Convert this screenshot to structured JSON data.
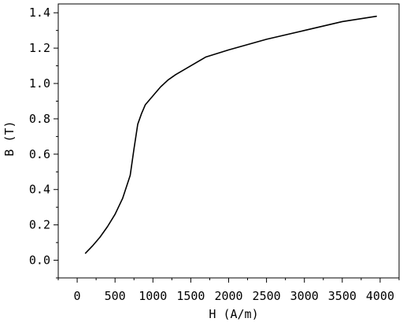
{
  "chart_data": {
    "type": "line",
    "title": "",
    "xlabel": "H (A/m)",
    "ylabel": "B (T)",
    "xlim": [
      -250,
      4250
    ],
    "ylim": [
      -0.1,
      1.45
    ],
    "xticks": [
      0,
      500,
      1000,
      1500,
      2000,
      2500,
      3000,
      3500,
      4000
    ],
    "yticks": [
      0.0,
      0.2,
      0.4,
      0.6,
      0.8,
      1.0,
      1.2,
      1.4
    ],
    "xtick_labels": [
      "0",
      "500",
      "1000",
      "1500",
      "2000",
      "2500",
      "3000",
      "3500",
      "4000"
    ],
    "ytick_labels": [
      "0.0",
      "0.2",
      "0.4",
      "0.6",
      "0.8",
      "1.0",
      "1.2",
      "1.4"
    ],
    "grid": false,
    "legend": "none",
    "line_color": "#000000",
    "series": [
      {
        "x": [
          110,
          200,
          300,
          400,
          500,
          600,
          700,
          750,
          800,
          850,
          900,
          1000,
          1100,
          1200,
          1300,
          1500,
          1700,
          2000,
          2500,
          3000,
          3500,
          3950
        ],
        "y": [
          0.04,
          0.08,
          0.13,
          0.19,
          0.26,
          0.35,
          0.48,
          0.63,
          0.77,
          0.83,
          0.88,
          0.93,
          0.98,
          1.02,
          1.05,
          1.1,
          1.15,
          1.19,
          1.25,
          1.3,
          1.35,
          1.38
        ]
      }
    ]
  }
}
